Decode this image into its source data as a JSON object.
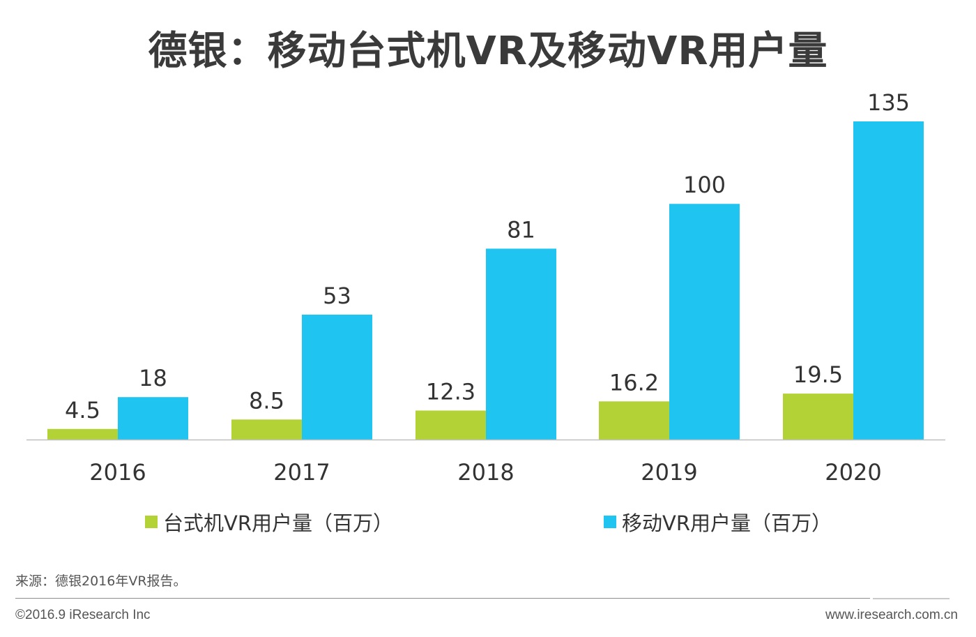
{
  "chart_data": {
    "type": "bar",
    "title": "德银：移动台式机VR及移动VR用户量",
    "categories": [
      "2016",
      "2017",
      "2018",
      "2019",
      "2020"
    ],
    "series": [
      {
        "name": "台式机VR用户量（百万）",
        "values": [
          4.5,
          8.5,
          12.3,
          16.2,
          19.5
        ],
        "labels": [
          "4.5",
          "8.5",
          "12.3",
          "16.2",
          "19.5"
        ],
        "color": "#b2d235"
      },
      {
        "name": "移动VR用户量（百万）",
        "values": [
          18,
          53,
          81,
          100,
          135
        ],
        "labels": [
          "18",
          "53",
          "81",
          "100",
          "135"
        ],
        "color": "#1fc4f0"
      }
    ],
    "ylim": [
      0,
      135
    ],
    "grid": false,
    "legend": "bottom"
  },
  "footer": {
    "source": "来源：德银2016年VR报告。",
    "copyright": "©2016.9 iResearch Inc",
    "website": "www.iresearch.com.cn"
  }
}
